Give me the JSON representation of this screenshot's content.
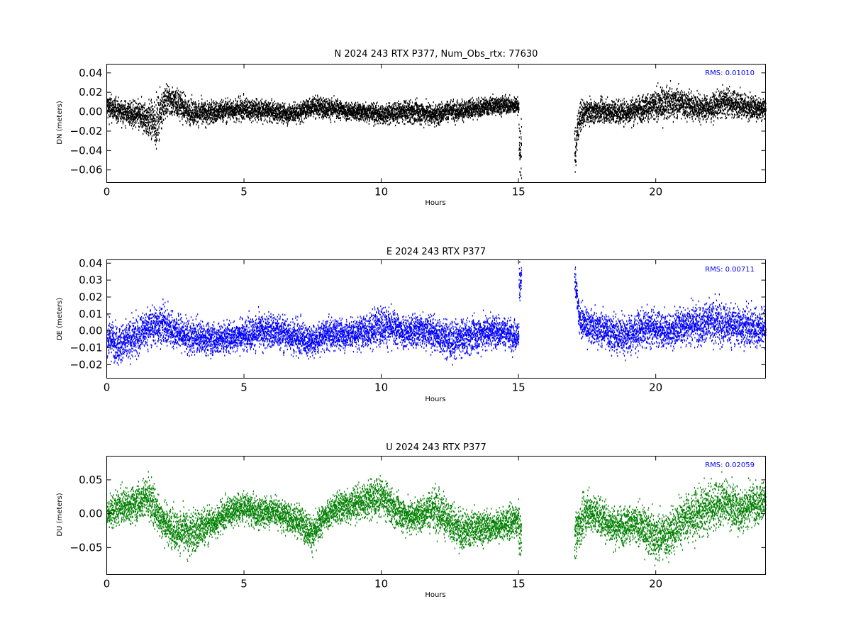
{
  "chart_data": [
    {
      "type": "scatter",
      "title": "N 2024 243 RTX  P377, Num_Obs_rtx: 77630",
      "ylabel": "DN (meters)",
      "xlabel": "Hours",
      "rms_label": "RMS:  0.01010",
      "color": "#000000",
      "xlim": [
        0,
        24
      ],
      "ylim": [
        -0.073,
        0.049
      ],
      "xticks": [
        0,
        5,
        10,
        15,
        20
      ],
      "xtick_labels": [
        "0",
        "5",
        "10",
        "15",
        "20"
      ],
      "yticks": [
        -0.06,
        -0.04,
        -0.02,
        0.0,
        0.02,
        0.04
      ],
      "ytick_labels": [
        "−0.06",
        "−0.04",
        "−0.02",
        "0.00",
        "0.02",
        "0.04"
      ],
      "grid": false,
      "data_gap_hours": [
        15.1,
        17.0
      ],
      "series": [
        {
          "x": [
            0,
            0.5,
            1,
            1.5,
            1.8,
            2,
            2.2,
            2.5,
            3,
            3.5,
            4,
            4.5,
            5,
            5.5,
            6,
            6.5,
            7,
            7.5,
            8,
            8.5,
            9,
            9.5,
            10,
            10.5,
            11,
            11.5,
            12,
            12.5,
            13,
            13.5,
            14,
            14.5,
            15,
            17.05,
            17.2,
            17.5,
            18,
            18.5,
            19,
            19.5,
            20,
            20.5,
            21,
            21.5,
            22,
            22.5,
            23,
            23.5,
            24
          ],
          "mean": [
            0.005,
            0.0,
            -0.003,
            -0.008,
            -0.012,
            0.005,
            0.012,
            0.01,
            0.0,
            -0.002,
            0.0,
            0.002,
            0.003,
            0.002,
            0.0,
            -0.002,
            -0.001,
            0.006,
            0.004,
            0.002,
            0.0,
            0.0,
            -0.003,
            -0.001,
            0.0,
            -0.001,
            -0.003,
            0.002,
            0.001,
            0.004,
            0.006,
            0.007,
            0.006,
            -0.04,
            -0.006,
            0.0,
            0.001,
            0.0,
            0.0,
            0.004,
            0.006,
            0.01,
            0.008,
            0.005,
            0.004,
            0.01,
            0.008,
            0.004,
            0.004
          ],
          "spread": [
            0.012,
            0.01,
            0.012,
            0.016,
            0.02,
            0.016,
            0.015,
            0.013,
            0.011,
            0.011,
            0.01,
            0.01,
            0.01,
            0.01,
            0.009,
            0.009,
            0.009,
            0.009,
            0.009,
            0.009,
            0.008,
            0.009,
            0.009,
            0.009,
            0.01,
            0.01,
            0.01,
            0.009,
            0.009,
            0.008,
            0.008,
            0.008,
            0.007,
            0.025,
            0.012,
            0.01,
            0.01,
            0.011,
            0.011,
            0.012,
            0.014,
            0.014,
            0.013,
            0.012,
            0.011,
            0.012,
            0.012,
            0.011,
            0.01
          ]
        }
      ]
    },
    {
      "type": "scatter",
      "title": "E 2024 243 RTX  P377",
      "ylabel": "DE (meters)",
      "xlabel": "Hours",
      "rms_label": "RMS:  0.00711",
      "color": "#0000ff",
      "xlim": [
        0,
        24
      ],
      "ylim": [
        -0.028,
        0.042
      ],
      "xticks": [
        0,
        5,
        10,
        15,
        20
      ],
      "xtick_labels": [
        "0",
        "5",
        "10",
        "15",
        "20"
      ],
      "yticks": [
        -0.02,
        -0.01,
        0.0,
        0.01,
        0.02,
        0.03,
        0.04
      ],
      "ytick_labels": [
        "−0.02",
        "−0.01",
        "0.00",
        "0.01",
        "0.02",
        "0.03",
        "0.04"
      ],
      "grid": false,
      "data_gap_hours": [
        15.1,
        17.0
      ],
      "series": [
        {
          "x": [
            0,
            0.5,
            1,
            1.5,
            2,
            2.5,
            3,
            3.5,
            4,
            4.5,
            5,
            5.5,
            6,
            6.5,
            7,
            7.5,
            8,
            8.5,
            9,
            9.5,
            10,
            10.5,
            11,
            11.5,
            12,
            12.5,
            13,
            13.5,
            14,
            14.5,
            15,
            17.05,
            17.2,
            17.5,
            18,
            18.5,
            19,
            19.5,
            20,
            20.5,
            21,
            21.5,
            22,
            22.5,
            23,
            23.5,
            24
          ],
          "mean": [
            -0.004,
            -0.008,
            -0.004,
            0.002,
            0.004,
            0.0,
            -0.004,
            -0.004,
            -0.005,
            -0.004,
            -0.002,
            -0.001,
            0.0,
            -0.002,
            -0.004,
            -0.006,
            -0.002,
            -0.002,
            -0.002,
            0.0,
            0.004,
            0.001,
            -0.001,
            0.001,
            -0.002,
            -0.006,
            -0.004,
            -0.002,
            0.0,
            -0.001,
            -0.003,
            0.03,
            0.006,
            0.003,
            0.001,
            -0.002,
            -0.002,
            0.001,
            0.002,
            0.0,
            0.004,
            0.004,
            0.005,
            0.004,
            0.003,
            0.002,
            0.002
          ],
          "spread": [
            0.009,
            0.01,
            0.01,
            0.01,
            0.01,
            0.009,
            0.009,
            0.008,
            0.008,
            0.008,
            0.008,
            0.009,
            0.009,
            0.009,
            0.009,
            0.008,
            0.008,
            0.008,
            0.008,
            0.009,
            0.01,
            0.009,
            0.009,
            0.009,
            0.009,
            0.01,
            0.009,
            0.009,
            0.009,
            0.008,
            0.008,
            0.01,
            0.008,
            0.008,
            0.009,
            0.01,
            0.01,
            0.009,
            0.009,
            0.009,
            0.01,
            0.01,
            0.011,
            0.011,
            0.01,
            0.01,
            0.01
          ]
        }
      ]
    },
    {
      "type": "scatter",
      "title": "U 2024 243 RTX  P377",
      "ylabel": "DU (meters)",
      "xlabel": "Hours",
      "rms_label": "RMS:  0.02059",
      "color": "#008000",
      "xlim": [
        0,
        24
      ],
      "ylim": [
        -0.09,
        0.085
      ],
      "xticks": [
        0,
        5,
        10,
        15,
        20
      ],
      "xtick_labels": [
        "0",
        "5",
        "10",
        "15",
        "20"
      ],
      "yticks": [
        -0.05,
        0.0,
        0.05
      ],
      "ytick_labels": [
        "−0.05",
        "0.00",
        "0.05"
      ],
      "grid": false,
      "data_gap_hours": [
        15.1,
        17.0
      ],
      "series": [
        {
          "x": [
            0,
            0.5,
            1,
            1.5,
            2,
            2.5,
            3,
            3.5,
            4,
            4.5,
            5,
            5.5,
            6,
            6.5,
            7,
            7.5,
            8,
            8.5,
            9,
            9.5,
            10,
            10.5,
            11,
            11.5,
            12,
            12.5,
            13,
            13.5,
            14,
            14.5,
            15,
            17.05,
            17.5,
            18,
            18.5,
            19,
            19.5,
            20,
            20.5,
            21,
            21.5,
            22,
            22.5,
            23,
            23.5,
            24
          ],
          "mean": [
            0.0,
            0.01,
            0.015,
            0.025,
            -0.01,
            -0.025,
            -0.03,
            -0.02,
            -0.01,
            0.005,
            0.01,
            0.0,
            0.005,
            -0.005,
            -0.01,
            -0.03,
            0.0,
            0.01,
            0.015,
            0.02,
            0.025,
            0.005,
            -0.005,
            0.0,
            0.01,
            -0.015,
            -0.025,
            -0.02,
            -0.02,
            -0.015,
            -0.01,
            -0.03,
            0.005,
            -0.005,
            -0.02,
            -0.015,
            -0.02,
            -0.035,
            -0.03,
            -0.005,
            0.0,
            0.01,
            0.02,
            0.005,
            0.015,
            0.02
          ],
          "spread": [
            0.02,
            0.022,
            0.022,
            0.028,
            0.025,
            0.025,
            0.03,
            0.025,
            0.02,
            0.02,
            0.02,
            0.02,
            0.02,
            0.02,
            0.02,
            0.022,
            0.02,
            0.022,
            0.022,
            0.025,
            0.025,
            0.022,
            0.022,
            0.022,
            0.03,
            0.025,
            0.025,
            0.022,
            0.02,
            0.02,
            0.02,
            0.03,
            0.025,
            0.025,
            0.025,
            0.025,
            0.025,
            0.03,
            0.03,
            0.03,
            0.03,
            0.03,
            0.03,
            0.03,
            0.025,
            0.025
          ]
        }
      ]
    }
  ]
}
